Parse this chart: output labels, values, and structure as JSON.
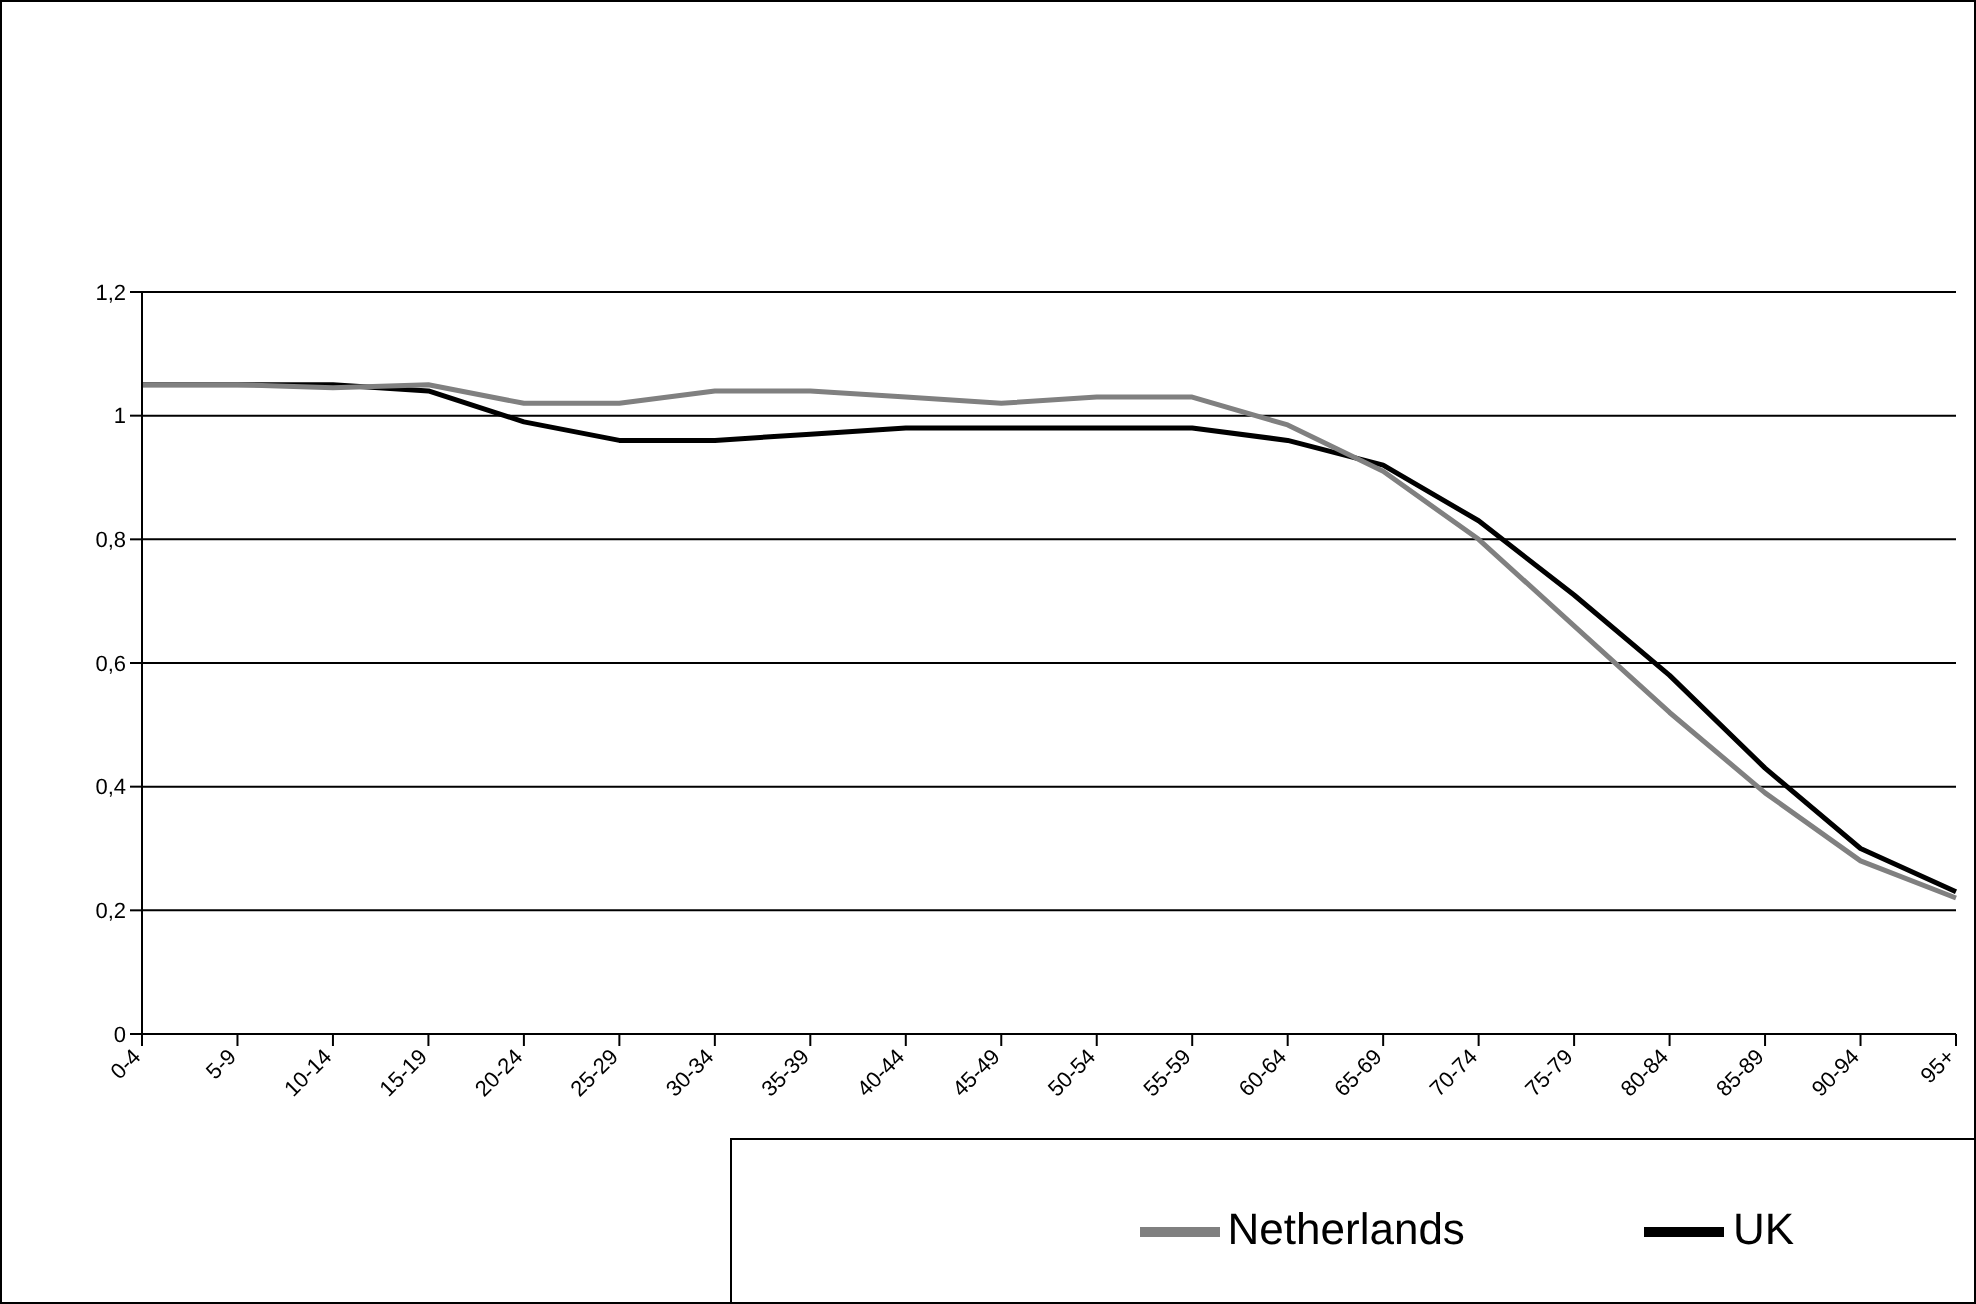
{
  "chart_data": {
    "type": "line",
    "categories": [
      "0-4",
      "5-9",
      "10-14",
      "15-19",
      "20-24",
      "25-29",
      "30-34",
      "35-39",
      "40-44",
      "45-49",
      "50-54",
      "55-59",
      "60-64",
      "65-69",
      "70-74",
      "75-79",
      "80-84",
      "85-89",
      "90-94",
      "95+"
    ],
    "series": [
      {
        "name": "UK",
        "color": "#000000",
        "values": [
          1.05,
          1.05,
          1.05,
          1.04,
          0.99,
          0.96,
          0.96,
          0.97,
          0.98,
          0.98,
          0.98,
          0.98,
          0.96,
          0.92,
          0.83,
          0.71,
          0.58,
          0.43,
          0.3,
          0.23
        ]
      },
      {
        "name": "Netherlands",
        "color": "#808080",
        "values": [
          1.05,
          1.05,
          1.045,
          1.05,
          1.02,
          1.02,
          1.04,
          1.04,
          1.03,
          1.02,
          1.03,
          1.03,
          0.985,
          0.91,
          0.8,
          0.66,
          0.52,
          0.39,
          0.28,
          0.22
        ]
      }
    ],
    "ylim": [
      0,
      1.2
    ],
    "yticks": [
      0,
      {
        "value": 0.2,
        "label": "0,2"
      },
      {
        "value": 0.4,
        "label": "0,4"
      },
      {
        "value": 0.6,
        "label": "0,6"
      },
      {
        "value": 0.8,
        "label": "0,8"
      },
      1,
      {
        "value": 1.2,
        "label": "1,2"
      }
    ],
    "grid": "y",
    "legend": "bottom right",
    "marker": "none",
    "line_style": "solid"
  }
}
